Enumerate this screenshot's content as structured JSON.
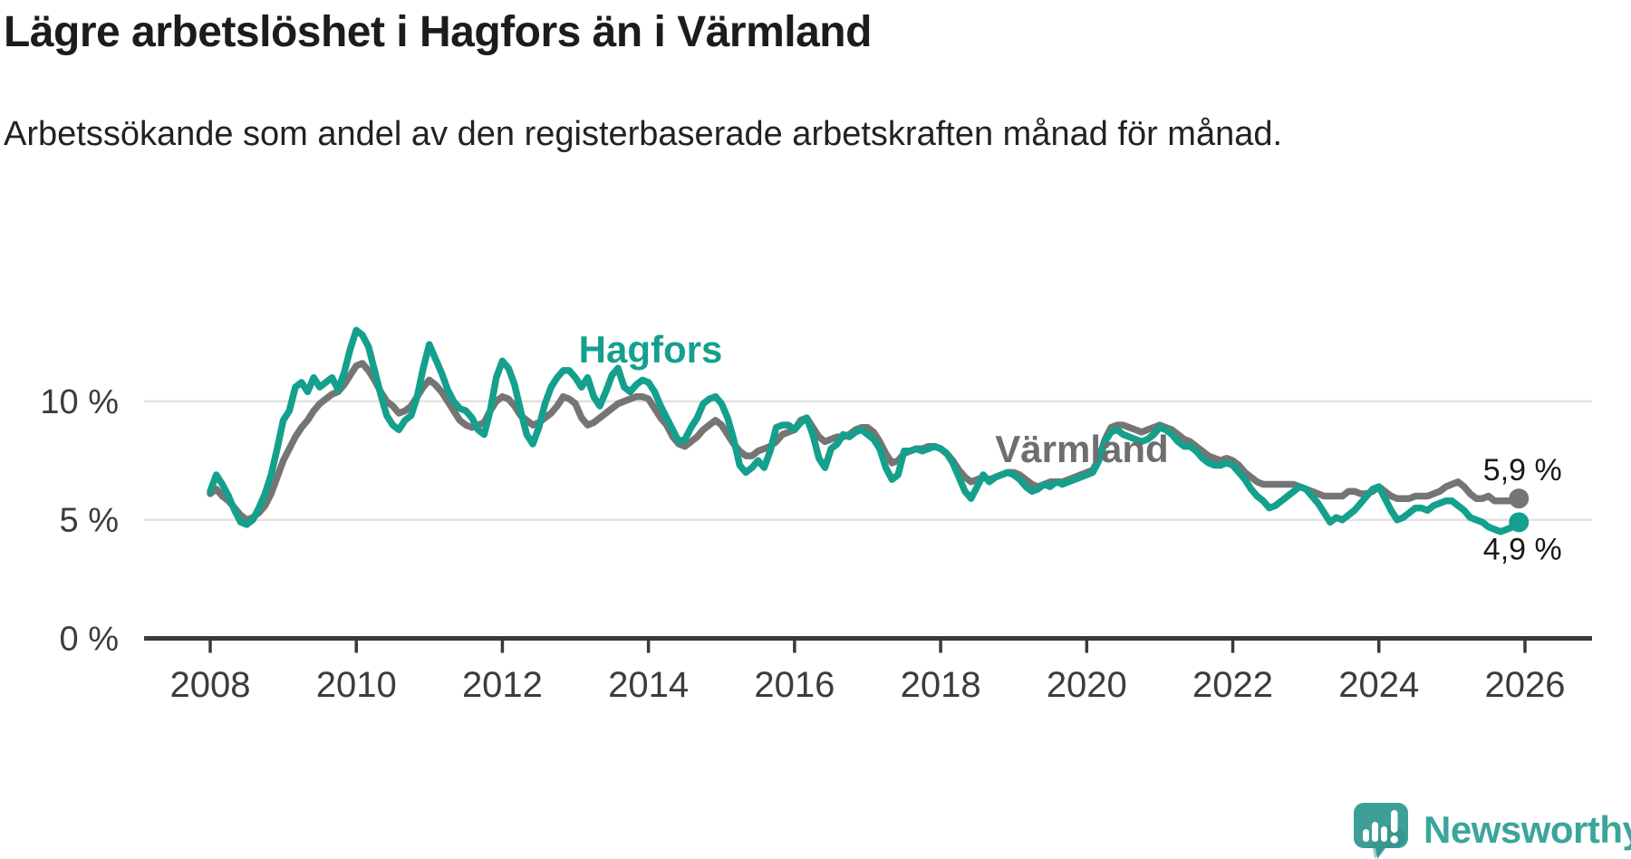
{
  "header": {
    "title": "Lägre arbetslöshet i Hagfors än i Värmland",
    "subtitle": "Arbetssökande som andel av den registerbaserade arbetskraften månad för månad."
  },
  "chart_data": {
    "type": "line",
    "unit": "%",
    "x_start": {
      "year": 2008,
      "month": 1
    },
    "x_interval": "monthly",
    "x_tick_years": [
      2008,
      2010,
      2012,
      2014,
      2016,
      2018,
      2020,
      2022,
      2024,
      2026
    ],
    "ylim": [
      0,
      13.5
    ],
    "y_gridlines": [
      5,
      10
    ],
    "y_axis_labels": [
      {
        "value": 0,
        "label": "0 %"
      },
      {
        "value": 5,
        "label": "5 %"
      },
      {
        "value": 10,
        "label": "10 %"
      }
    ],
    "grid": "horizontal-only",
    "legend": "inline-labels-on-lines",
    "colors": {
      "hagfors": "#14A08D",
      "varmland": "#757575",
      "axis": "#3A3A3A",
      "grid": "#E1E1E1",
      "tick_text": "#3C3C3C",
      "value_text": "#1A1A1A"
    },
    "series": [
      {
        "name": "Värmland",
        "color": "#757575",
        "end_value": 5.9,
        "end_label": "5,9 %",
        "values": [
          6.1,
          6.3,
          6.0,
          5.8,
          5.5,
          5.2,
          5.0,
          5.1,
          5.3,
          5.6,
          6.1,
          6.8,
          7.5,
          8.0,
          8.5,
          8.9,
          9.2,
          9.6,
          9.9,
          10.1,
          10.3,
          10.4,
          10.7,
          11.1,
          11.5,
          11.6,
          11.3,
          10.9,
          10.4,
          10.0,
          9.8,
          9.5,
          9.6,
          9.8,
          10.2,
          10.6,
          10.9,
          10.7,
          10.4,
          10.0,
          9.6,
          9.2,
          9.0,
          8.9,
          9.0,
          9.1,
          9.6,
          10.0,
          10.2,
          10.1,
          9.8,
          9.4,
          9.2,
          9.0,
          9.1,
          9.3,
          9.5,
          9.8,
          10.2,
          10.1,
          9.9,
          9.3,
          9.0,
          9.1,
          9.3,
          9.5,
          9.7,
          9.9,
          10.0,
          10.1,
          10.2,
          10.2,
          10.1,
          9.7,
          9.3,
          9.0,
          8.5,
          8.2,
          8.1,
          8.3,
          8.5,
          8.8,
          9.0,
          9.2,
          9.0,
          8.6,
          8.2,
          7.9,
          7.7,
          7.7,
          7.9,
          8.0,
          8.1,
          8.3,
          8.6,
          8.7,
          8.8,
          9.2,
          9.3,
          8.9,
          8.5,
          8.3,
          8.4,
          8.5,
          8.5,
          8.6,
          8.8,
          8.9,
          8.9,
          8.7,
          8.3,
          7.8,
          7.4,
          7.5,
          7.8,
          7.9,
          8.0,
          8.0,
          8.1,
          8.1,
          8.0,
          7.8,
          7.5,
          7.1,
          6.8,
          6.6,
          6.7,
          6.8,
          6.7,
          6.8,
          6.9,
          7.0,
          7.0,
          6.9,
          6.7,
          6.5,
          6.4,
          6.5,
          6.6,
          6.6,
          6.6,
          6.7,
          6.8,
          6.9,
          7.0,
          7.1,
          7.6,
          8.4,
          8.9,
          9.0,
          9.0,
          8.9,
          8.8,
          8.7,
          8.8,
          8.9,
          9.0,
          8.9,
          8.8,
          8.6,
          8.4,
          8.3,
          8.1,
          7.9,
          7.7,
          7.6,
          7.5,
          7.6,
          7.5,
          7.3,
          7.0,
          6.8,
          6.6,
          6.5,
          6.5,
          6.5,
          6.5,
          6.5,
          6.5,
          6.4,
          6.3,
          6.2,
          6.1,
          6.0,
          6.0,
          6.0,
          6.0,
          6.2,
          6.2,
          6.1,
          6.1,
          6.2,
          6.4,
          6.2,
          6.0,
          5.9,
          5.9,
          5.9,
          6.0,
          6.0,
          6.0,
          6.1,
          6.2,
          6.4,
          6.5,
          6.6,
          6.4,
          6.1,
          5.9,
          5.9,
          6.0,
          5.8,
          5.8,
          5.8,
          5.8,
          5.9
        ]
      },
      {
        "name": "Hagfors",
        "color": "#14A08D",
        "end_value": 4.9,
        "end_label": "4,9 %",
        "values": [
          6.2,
          6.9,
          6.5,
          6.0,
          5.4,
          4.9,
          4.8,
          5.0,
          5.5,
          6.1,
          6.9,
          8.0,
          9.2,
          9.6,
          10.6,
          10.8,
          10.4,
          11.0,
          10.6,
          10.8,
          11.0,
          10.5,
          11.2,
          12.2,
          13.0,
          12.8,
          12.3,
          11.3,
          10.3,
          9.4,
          9.0,
          8.8,
          9.2,
          9.4,
          10.2,
          11.4,
          12.4,
          11.8,
          11.2,
          10.5,
          10.0,
          9.7,
          9.6,
          9.3,
          8.8,
          8.6,
          9.6,
          11.0,
          11.7,
          11.4,
          10.7,
          9.6,
          8.6,
          8.2,
          8.9,
          9.9,
          10.6,
          11.0,
          11.3,
          11.3,
          11.0,
          10.6,
          11.0,
          10.2,
          9.8,
          10.4,
          11.1,
          11.4,
          10.6,
          10.4,
          10.7,
          10.9,
          10.8,
          10.4,
          9.8,
          9.3,
          8.8,
          8.3,
          8.4,
          8.9,
          9.3,
          9.9,
          10.1,
          10.2,
          9.9,
          9.3,
          8.4,
          7.3,
          7.0,
          7.2,
          7.5,
          7.2,
          7.9,
          8.9,
          9.0,
          9.0,
          8.8,
          9.1,
          9.3,
          8.6,
          7.6,
          7.2,
          8.0,
          8.2,
          8.6,
          8.5,
          8.7,
          8.8,
          8.6,
          8.4,
          8.0,
          7.2,
          6.7,
          6.9,
          7.9,
          7.9,
          8.0,
          7.9,
          8.0,
          8.1,
          8.0,
          7.8,
          7.4,
          6.8,
          6.2,
          5.9,
          6.4,
          6.9,
          6.6,
          6.8,
          6.9,
          7.0,
          6.9,
          6.7,
          6.4,
          6.2,
          6.3,
          6.5,
          6.4,
          6.6,
          6.5,
          6.6,
          6.7,
          6.8,
          6.9,
          7.0,
          7.5,
          8.3,
          8.7,
          8.8,
          8.6,
          8.5,
          8.4,
          8.3,
          8.4,
          8.6,
          8.9,
          8.8,
          8.6,
          8.3,
          8.1,
          8.1,
          7.9,
          7.6,
          7.4,
          7.3,
          7.3,
          7.4,
          7.3,
          7.0,
          6.7,
          6.3,
          6.0,
          5.8,
          5.5,
          5.6,
          5.8,
          6.0,
          6.2,
          6.4,
          6.3,
          6.0,
          5.7,
          5.3,
          4.9,
          5.1,
          5.0,
          5.2,
          5.4,
          5.7,
          6.0,
          6.3,
          6.4,
          5.9,
          5.4,
          5.0,
          5.1,
          5.3,
          5.5,
          5.5,
          5.4,
          5.6,
          5.7,
          5.8,
          5.8,
          5.6,
          5.4,
          5.1,
          5.0,
          4.9,
          4.7,
          4.6,
          4.5,
          4.6,
          4.7,
          4.9
        ]
      }
    ]
  },
  "footer": {
    "brand": "Newsworthy",
    "logo_icon": "speech-bubble-bar-chart-icon"
  }
}
